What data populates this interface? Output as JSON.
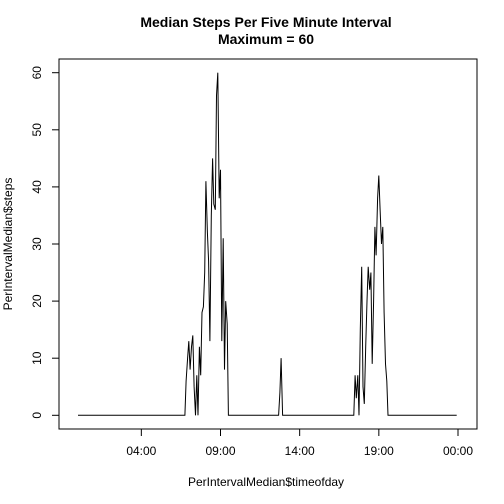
{
  "chart_data": {
    "type": "line",
    "title": "Median Steps Per Five Minute Interval",
    "subtitle": "Maximum =  60",
    "xlabel": "PerIntervalMedian$timeofday",
    "ylabel": "PerIntervalMedian$steps",
    "x_unit": "hours since 00:00 (plotted day spans 00:00 to next day 00:00)",
    "xlim": [
      -1.2,
      25.2
    ],
    "ylim": [
      -2.4,
      62.4
    ],
    "x_ticks": [
      {
        "value": 4,
        "label": "04:00"
      },
      {
        "value": 9,
        "label": "09:00"
      },
      {
        "value": 14,
        "label": "14:00"
      },
      {
        "value": 19,
        "label": "19:00"
      },
      {
        "value": 24,
        "label": "00:00"
      }
    ],
    "y_ticks": [
      {
        "value": 0,
        "label": "0"
      },
      {
        "value": 10,
        "label": "10"
      },
      {
        "value": 20,
        "label": "20"
      },
      {
        "value": 30,
        "label": "30"
      },
      {
        "value": 40,
        "label": "40"
      },
      {
        "value": 50,
        "label": "50"
      },
      {
        "value": 60,
        "label": "60"
      }
    ],
    "grid": false,
    "legend": "none",
    "series": [
      {
        "color": "#000000",
        "points": [
          [
            0.0,
            0
          ],
          [
            6.75,
            0
          ],
          [
            6.83,
            6
          ],
          [
            6.92,
            10
          ],
          [
            7.0,
            13
          ],
          [
            7.08,
            8
          ],
          [
            7.17,
            12
          ],
          [
            7.25,
            14
          ],
          [
            7.33,
            5
          ],
          [
            7.42,
            0
          ],
          [
            7.5,
            7
          ],
          [
            7.58,
            0
          ],
          [
            7.67,
            12
          ],
          [
            7.75,
            7
          ],
          [
            7.83,
            18
          ],
          [
            7.92,
            19
          ],
          [
            8.0,
            25
          ],
          [
            8.08,
            41
          ],
          [
            8.17,
            32
          ],
          [
            8.25,
            27
          ],
          [
            8.33,
            13
          ],
          [
            8.42,
            35
          ],
          [
            8.5,
            45
          ],
          [
            8.58,
            37
          ],
          [
            8.67,
            36
          ],
          [
            8.75,
            56
          ],
          [
            8.83,
            60
          ],
          [
            8.92,
            38
          ],
          [
            9.0,
            43
          ],
          [
            9.08,
            13
          ],
          [
            9.17,
            31
          ],
          [
            9.25,
            8
          ],
          [
            9.33,
            20
          ],
          [
            9.42,
            16
          ],
          [
            9.5,
            0
          ],
          [
            12.67,
            0
          ],
          [
            12.75,
            4
          ],
          [
            12.83,
            10
          ],
          [
            12.92,
            0
          ],
          [
            17.42,
            0
          ],
          [
            17.5,
            7
          ],
          [
            17.58,
            3
          ],
          [
            17.67,
            7
          ],
          [
            17.75,
            0
          ],
          [
            17.83,
            15
          ],
          [
            17.92,
            26
          ],
          [
            18.0,
            5
          ],
          [
            18.08,
            2
          ],
          [
            18.17,
            12
          ],
          [
            18.25,
            20
          ],
          [
            18.33,
            26
          ],
          [
            18.42,
            22
          ],
          [
            18.5,
            25
          ],
          [
            18.58,
            9
          ],
          [
            18.67,
            20
          ],
          [
            18.75,
            33
          ],
          [
            18.83,
            28
          ],
          [
            18.92,
            38
          ],
          [
            19.0,
            42
          ],
          [
            19.08,
            36
          ],
          [
            19.17,
            30
          ],
          [
            19.25,
            33
          ],
          [
            19.33,
            18
          ],
          [
            19.42,
            9
          ],
          [
            19.5,
            6
          ],
          [
            19.58,
            0
          ],
          [
            23.92,
            0
          ]
        ]
      }
    ]
  }
}
